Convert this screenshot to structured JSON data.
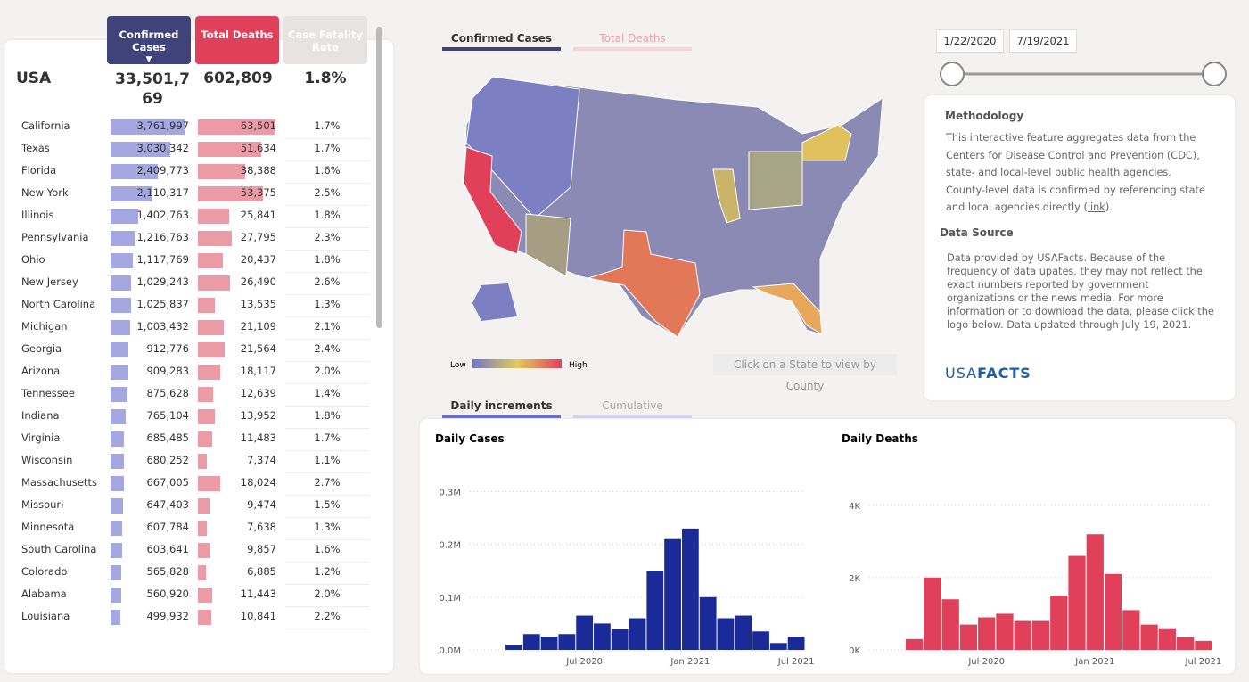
{
  "table": {
    "headers": [
      "Confirmed Cases",
      "Total Deaths",
      "Case Fatality Rate"
    ],
    "total": {
      "name": "USA",
      "confirmed_label": "33,501,769",
      "deaths_label": "602,809",
      "cfr": "1.8%"
    },
    "rows": [
      {
        "name": "California",
        "confirmed": 3761997,
        "confirmed_label": "3,761,997",
        "deaths": 63501,
        "deaths_label": "63,501",
        "cfr": "1.7%"
      },
      {
        "name": "Texas",
        "confirmed": 3030342,
        "confirmed_label": "3,030,342",
        "deaths": 51634,
        "deaths_label": "51,634",
        "cfr": "1.7%"
      },
      {
        "name": "Florida",
        "confirmed": 2409773,
        "confirmed_label": "2,409,773",
        "deaths": 38388,
        "deaths_label": "38,388",
        "cfr": "1.6%"
      },
      {
        "name": "New York",
        "confirmed": 2110317,
        "confirmed_label": "2,110,317",
        "deaths": 53375,
        "deaths_label": "53,375",
        "cfr": "2.5%"
      },
      {
        "name": "Illinois",
        "confirmed": 1402763,
        "confirmed_label": "1,402,763",
        "deaths": 25841,
        "deaths_label": "25,841",
        "cfr": "1.8%"
      },
      {
        "name": "Pennsylvania",
        "confirmed": 1216763,
        "confirmed_label": "1,216,763",
        "deaths": 27795,
        "deaths_label": "27,795",
        "cfr": "2.3%"
      },
      {
        "name": "Ohio",
        "confirmed": 1117769,
        "confirmed_label": "1,117,769",
        "deaths": 20437,
        "deaths_label": "20,437",
        "cfr": "1.8%"
      },
      {
        "name": "New Jersey",
        "confirmed": 1029243,
        "confirmed_label": "1,029,243",
        "deaths": 26490,
        "deaths_label": "26,490",
        "cfr": "2.6%"
      },
      {
        "name": "North Carolina",
        "confirmed": 1025837,
        "confirmed_label": "1,025,837",
        "deaths": 13535,
        "deaths_label": "13,535",
        "cfr": "1.3%"
      },
      {
        "name": "Michigan",
        "confirmed": 1003432,
        "confirmed_label": "1,003,432",
        "deaths": 21109,
        "deaths_label": "21,109",
        "cfr": "2.1%"
      },
      {
        "name": "Georgia",
        "confirmed": 912776,
        "confirmed_label": "912,776",
        "deaths": 21564,
        "deaths_label": "21,564",
        "cfr": "2.4%"
      },
      {
        "name": "Arizona",
        "confirmed": 909283,
        "confirmed_label": "909,283",
        "deaths": 18117,
        "deaths_label": "18,117",
        "cfr": "2.0%"
      },
      {
        "name": "Tennessee",
        "confirmed": 875628,
        "confirmed_label": "875,628",
        "deaths": 12639,
        "deaths_label": "12,639",
        "cfr": "1.4%"
      },
      {
        "name": "Indiana",
        "confirmed": 765104,
        "confirmed_label": "765,104",
        "deaths": 13952,
        "deaths_label": "13,952",
        "cfr": "1.8%"
      },
      {
        "name": "Virginia",
        "confirmed": 685485,
        "confirmed_label": "685,485",
        "deaths": 11483,
        "deaths_label": "11,483",
        "cfr": "1.7%"
      },
      {
        "name": "Wisconsin",
        "confirmed": 680252,
        "confirmed_label": "680,252",
        "deaths": 7374,
        "deaths_label": "7,374",
        "cfr": "1.1%"
      },
      {
        "name": "Massachusetts",
        "confirmed": 667005,
        "confirmed_label": "667,005",
        "deaths": 18024,
        "deaths_label": "18,024",
        "cfr": "2.7%"
      },
      {
        "name": "Missouri",
        "confirmed": 647403,
        "confirmed_label": "647,403",
        "deaths": 9474,
        "deaths_label": "9,474",
        "cfr": "1.5%"
      },
      {
        "name": "Minnesota",
        "confirmed": 607784,
        "confirmed_label": "607,784",
        "deaths": 7638,
        "deaths_label": "7,638",
        "cfr": "1.3%"
      },
      {
        "name": "South Carolina",
        "confirmed": 603641,
        "confirmed_label": "603,641",
        "deaths": 9857,
        "deaths_label": "9,857",
        "cfr": "1.6%"
      },
      {
        "name": "Colorado",
        "confirmed": 565828,
        "confirmed_label": "565,828",
        "deaths": 6885,
        "deaths_label": "6,885",
        "cfr": "1.2%"
      },
      {
        "name": "Alabama",
        "confirmed": 560920,
        "confirmed_label": "560,920",
        "deaths": 11443,
        "deaths_label": "11,443",
        "cfr": "2.0%"
      },
      {
        "name": "Louisiana",
        "confirmed": 499932,
        "confirmed_label": "499,932",
        "deaths": 10841,
        "deaths_label": "10,841",
        "cfr": "2.2%"
      }
    ]
  },
  "map_tabs": [
    "Confirmed Cases",
    "Total Deaths"
  ],
  "map_legend": {
    "low": "Low",
    "high": "High"
  },
  "map_hint": "Click on a State to view by County",
  "date_range": [
    "1/22/2020",
    "7/19/2021"
  ],
  "methodology": {
    "title": "Methodology",
    "text_before": "This interactive feature aggregates data from the Centers for Disease Control and Prevention (CDC), state- and local-level public health agencies. County-level data is confirmed by referencing state and local agencies directly (",
    "link": "link",
    "text_after": ")."
  },
  "data_source": {
    "title": "Data Source",
    "text": "Data provided by USAFacts. Because of the frequency of data upates, they may not reflect the exact numbers reported by government organizations or the news media. For more information or to download the data, please click the logo below. Data updated through July 19, 2021."
  },
  "logo": [
    "USA",
    "FACTS"
  ],
  "chart_tabs": [
    "Daily increments",
    "Cumulative"
  ],
  "chart_data": [
    {
      "type": "bar",
      "title": "Daily Cases",
      "color": "#1a2a99",
      "categories": [
        null,
        null,
        null,
        null,
        null,
        null,
        "Jul 2020",
        null,
        null,
        null,
        null,
        null,
        "Jan 2021",
        null,
        null,
        null,
        null,
        null,
        "Jul 2021"
      ],
      "values": [
        0,
        0,
        10000,
        30000,
        25000,
        30000,
        65000,
        50000,
        40000,
        60000,
        150000,
        210000,
        230000,
        100000,
        60000,
        65000,
        35000,
        13000,
        25000
      ],
      "ylim": [
        0,
        370000
      ],
      "yticks": [
        {
          "value": 0,
          "label": "0.0M"
        },
        {
          "value": 100000,
          "label": "0.1M"
        },
        {
          "value": 200000,
          "label": "0.2M"
        },
        {
          "value": 300000,
          "label": "0.3M"
        }
      ]
    },
    {
      "type": "bar",
      "title": "Daily Deaths",
      "color": "#e0405a",
      "categories": [
        null,
        null,
        null,
        null,
        null,
        null,
        "Jul 2020",
        null,
        null,
        null,
        null,
        null,
        "Jan 2021",
        null,
        null,
        null,
        null,
        null,
        "Jul 2021"
      ],
      "values": [
        0,
        0,
        300,
        2000,
        1400,
        700,
        900,
        1000,
        800,
        800,
        1500,
        2600,
        3200,
        2100,
        1100,
        700,
        600,
        350,
        250
      ],
      "ylim": [
        0,
        5400
      ],
      "yticks": [
        {
          "value": 0,
          "label": "0K"
        },
        {
          "value": 2000,
          "label": "2K"
        },
        {
          "value": 4000,
          "label": "4K"
        }
      ]
    }
  ]
}
